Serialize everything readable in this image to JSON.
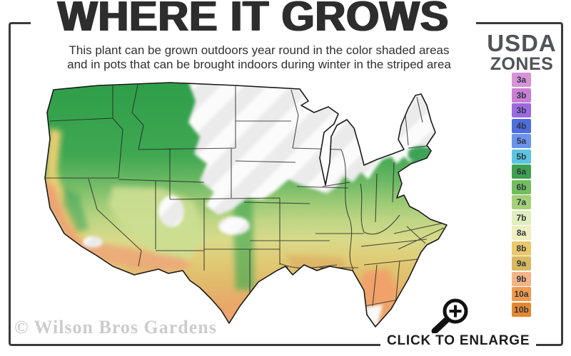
{
  "header": {
    "title": "WHERE IT GROWS",
    "subtitle_line1": "This plant can be grown outdoors year round in the color shaded areas",
    "subtitle_line2": "and in pots that can be brought indoors during winter in the striped area"
  },
  "legend": {
    "heading_line1": "USDA",
    "heading_line2": "ZONES",
    "zones": [
      {
        "label": "3a",
        "color": "#d892d8"
      },
      {
        "label": "3b",
        "color": "#ca7fd4"
      },
      {
        "label": "3b",
        "color": "#9b6ae0"
      },
      {
        "label": "4b",
        "color": "#4e6edd"
      },
      {
        "label": "5a",
        "color": "#6b93ea"
      },
      {
        "label": "5b",
        "color": "#5bc4e0"
      },
      {
        "label": "6a",
        "color": "#3da04f"
      },
      {
        "label": "6b",
        "color": "#72bd5e"
      },
      {
        "label": "7a",
        "color": "#a6d077"
      },
      {
        "label": "7b",
        "color": "#e0eebd"
      },
      {
        "label": "8a",
        "color": "#efeebf"
      },
      {
        "label": "8b",
        "color": "#ecc968"
      },
      {
        "label": "9a",
        "color": "#d9b95e"
      },
      {
        "label": "9b",
        "color": "#f4b486"
      },
      {
        "label": "10a",
        "color": "#f09b4c"
      },
      {
        "label": "10b",
        "color": "#e5882f"
      }
    ]
  },
  "footer": {
    "watermark": "© Wilson Bros Gardens",
    "enlarge_label": "CLICK TO ENLARGE",
    "enlarge_icon": "magnifying-glass-plus"
  },
  "colors": {
    "frame": "#3b3b3b",
    "title_text": "#2d2d2d",
    "legend_heading_text": "#525357",
    "watermark_text": "#cccccc",
    "striped_no_grow_area": "#ebebec",
    "map_outline": "#1a1a1a"
  }
}
